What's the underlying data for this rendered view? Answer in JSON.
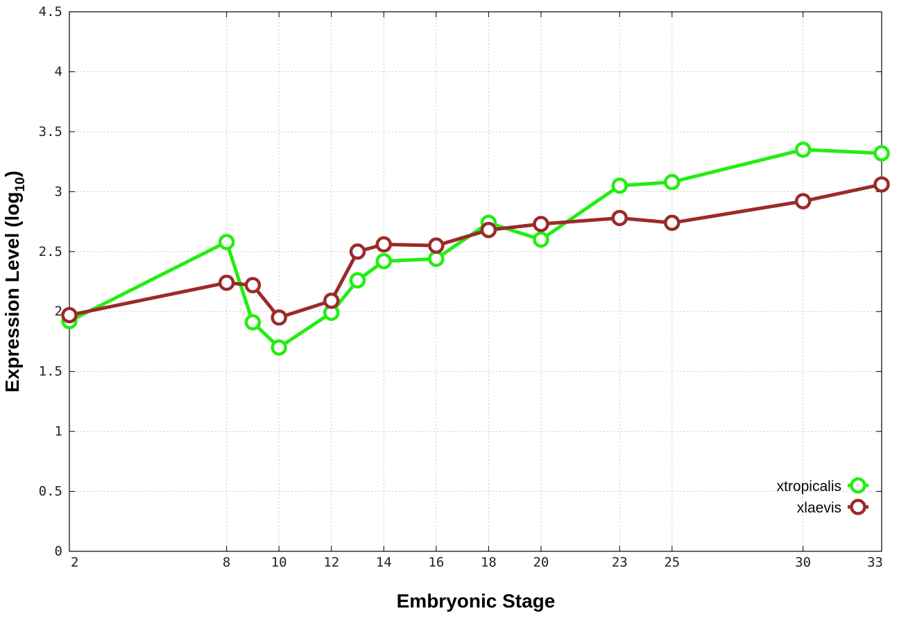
{
  "chart_data": {
    "type": "line",
    "title": "",
    "xlabel": "Embryonic Stage",
    "ylabel_main": "Expression Level (log",
    "ylabel_sub": "10",
    "ylabel_close": ")",
    "x": [
      2,
      8,
      9,
      10,
      12,
      13,
      14,
      16,
      18,
      20,
      23,
      25,
      30,
      33
    ],
    "x_tick_labels": [
      "2",
      "8",
      "10",
      "12",
      "14",
      "16",
      "18",
      "20",
      "23",
      "25",
      "30",
      "33"
    ],
    "y_tick_labels": [
      "0",
      "0.5",
      "1",
      "1.5",
      "2",
      "2.5",
      "3",
      "3.5",
      "4",
      "4.5"
    ],
    "ylim": [
      0,
      4.5
    ],
    "xlim": [
      2,
      33
    ],
    "grid": true,
    "legend_position": "bottom-right",
    "series": [
      {
        "name": "xtropicalis",
        "color": "#22ee11",
        "values": [
          1.92,
          2.58,
          1.91,
          1.7,
          1.99,
          2.26,
          2.42,
          2.44,
          2.74,
          2.6,
          3.05,
          3.08,
          3.35,
          3.32
        ]
      },
      {
        "name": "xlaevis",
        "color": "#9b2a2a",
        "values": [
          1.97,
          2.24,
          2.22,
          1.95,
          2.09,
          2.5,
          2.56,
          2.55,
          2.68,
          2.73,
          2.78,
          2.74,
          2.92,
          3.06
        ]
      }
    ]
  }
}
